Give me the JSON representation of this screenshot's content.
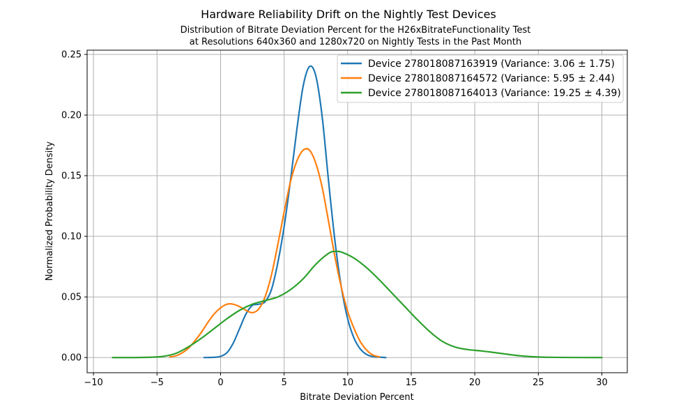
{
  "chart_data": {
    "type": "line",
    "title": "Hardware Reliability Drift on the Nightly Test Devices",
    "subtitle_lines": [
      "Distribution of Bitrate Deviation Percent for the H26xBitrateFunctionality Test",
      "at Resolutions 640x360 and 1280x720 on Nightly Tests in the Past Month"
    ],
    "xlabel": "Bitrate Deviation Percent",
    "ylabel": "Normalized Probability Density",
    "xlim": [
      -10.5,
      32
    ],
    "ylim": [
      -0.0125,
      0.2535
    ],
    "xticks": [
      -10,
      -5,
      0,
      5,
      10,
      15,
      20,
      25,
      30
    ],
    "xtick_labels": [
      "−10",
      "−5",
      "0",
      "5",
      "10",
      "15",
      "20",
      "25",
      "30"
    ],
    "yticks": [
      0.0,
      0.05,
      0.1,
      0.15,
      0.2,
      0.25
    ],
    "ytick_labels": [
      "0.00",
      "0.05",
      "0.10",
      "0.15",
      "0.20",
      "0.25"
    ],
    "grid": true,
    "legend_position": "top-right",
    "series": [
      {
        "name": "Device 278018087163919 (Variance: 3.06 ± 1.75)",
        "color": "#1f77b4",
        "points": [
          [
            -1.3,
            0.0
          ],
          [
            -0.5,
            0.0002
          ],
          [
            0.0,
            0.001
          ],
          [
            0.5,
            0.004
          ],
          [
            1.0,
            0.012
          ],
          [
            1.5,
            0.024
          ],
          [
            2.0,
            0.036
          ],
          [
            2.5,
            0.043
          ],
          [
            3.0,
            0.044
          ],
          [
            3.5,
            0.046
          ],
          [
            4.0,
            0.056
          ],
          [
            4.5,
            0.078
          ],
          [
            5.0,
            0.108
          ],
          [
            5.5,
            0.146
          ],
          [
            6.0,
            0.188
          ],
          [
            6.5,
            0.224
          ],
          [
            7.0,
            0.24
          ],
          [
            7.5,
            0.232
          ],
          [
            8.0,
            0.198
          ],
          [
            8.5,
            0.145
          ],
          [
            9.0,
            0.096
          ],
          [
            9.5,
            0.058
          ],
          [
            10.0,
            0.032
          ],
          [
            10.5,
            0.016
          ],
          [
            11.0,
            0.007
          ],
          [
            11.5,
            0.0025
          ],
          [
            12.0,
            0.0008
          ],
          [
            13.0,
            0.0
          ]
        ]
      },
      {
        "name": "Device 278018087164572 (Variance: 5.95 ± 2.44)",
        "color": "#ff7f0e",
        "points": [
          [
            -4.0,
            0.0005
          ],
          [
            -3.5,
            0.0015
          ],
          [
            -3.0,
            0.004
          ],
          [
            -2.5,
            0.008
          ],
          [
            -2.0,
            0.014
          ],
          [
            -1.5,
            0.021
          ],
          [
            -1.0,
            0.029
          ],
          [
            -0.5,
            0.036
          ],
          [
            0.0,
            0.041
          ],
          [
            0.5,
            0.044
          ],
          [
            1.0,
            0.044
          ],
          [
            1.5,
            0.042
          ],
          [
            2.0,
            0.039
          ],
          [
            2.5,
            0.037
          ],
          [
            3.0,
            0.04
          ],
          [
            3.5,
            0.05
          ],
          [
            4.0,
            0.068
          ],
          [
            4.5,
            0.093
          ],
          [
            5.0,
            0.12
          ],
          [
            5.5,
            0.145
          ],
          [
            6.0,
            0.162
          ],
          [
            6.5,
            0.171
          ],
          [
            7.0,
            0.171
          ],
          [
            7.5,
            0.16
          ],
          [
            8.0,
            0.14
          ],
          [
            8.5,
            0.112
          ],
          [
            9.0,
            0.083
          ],
          [
            9.5,
            0.058
          ],
          [
            10.0,
            0.038
          ],
          [
            10.5,
            0.024
          ],
          [
            11.0,
            0.013
          ],
          [
            11.5,
            0.006
          ],
          [
            12.0,
            0.002
          ],
          [
            12.5,
            0.0005
          ]
        ]
      },
      {
        "name": "Device 278018087164013 (Variance: 19.25 ± 4.39)",
        "color": "#2ca02c",
        "points": [
          [
            -8.5,
            0.0
          ],
          [
            -7.0,
            0.0
          ],
          [
            -5.5,
            0.0003
          ],
          [
            -4.5,
            0.001
          ],
          [
            -3.5,
            0.0035
          ],
          [
            -2.5,
            0.009
          ],
          [
            -1.5,
            0.016
          ],
          [
            -0.5,
            0.024
          ],
          [
            0.5,
            0.032
          ],
          [
            1.5,
            0.039
          ],
          [
            2.5,
            0.044
          ],
          [
            3.5,
            0.047
          ],
          [
            4.5,
            0.05
          ],
          [
            5.5,
            0.056
          ],
          [
            6.5,
            0.065
          ],
          [
            7.5,
            0.077
          ],
          [
            8.5,
            0.086
          ],
          [
            9.0,
            0.0875
          ],
          [
            9.5,
            0.087
          ],
          [
            10.5,
            0.082
          ],
          [
            11.5,
            0.074
          ],
          [
            12.5,
            0.064
          ],
          [
            13.5,
            0.053
          ],
          [
            14.5,
            0.042
          ],
          [
            15.5,
            0.031
          ],
          [
            16.5,
            0.021
          ],
          [
            17.5,
            0.013
          ],
          [
            18.5,
            0.0085
          ],
          [
            19.5,
            0.0065
          ],
          [
            20.5,
            0.0055
          ],
          [
            21.5,
            0.0042
          ],
          [
            22.5,
            0.0028
          ],
          [
            23.5,
            0.0015
          ],
          [
            24.5,
            0.0007
          ],
          [
            25.5,
            0.0003
          ],
          [
            27.0,
            0.0001
          ],
          [
            30.0,
            0.0
          ]
        ]
      }
    ]
  }
}
